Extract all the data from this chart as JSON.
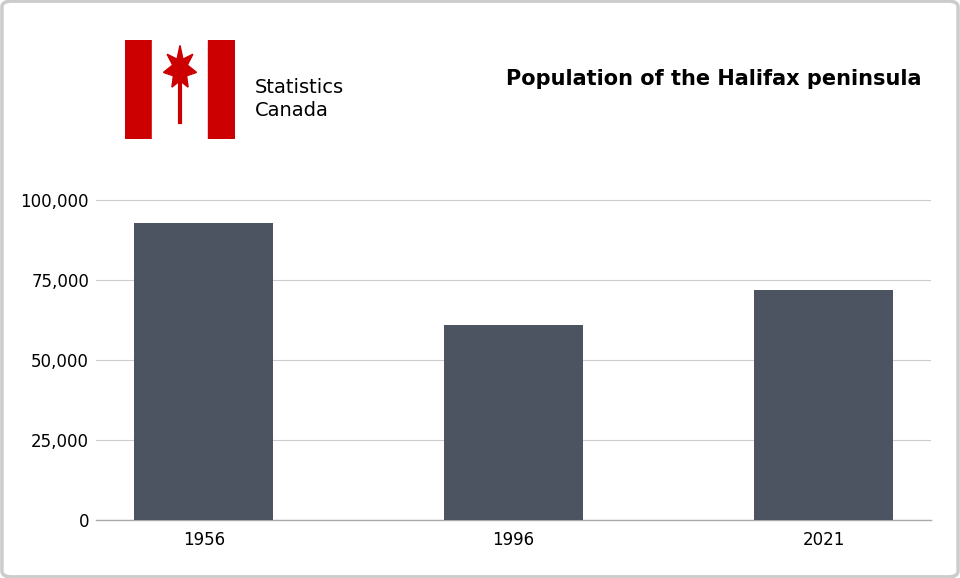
{
  "categories": [
    "1956",
    "1996",
    "2021"
  ],
  "values": [
    93000,
    61000,
    72000
  ],
  "bar_color": "#4d5461",
  "background_color": "#ffffff",
  "plot_bg_color": "#ffffff",
  "title": "Population of the Halifax peninsula",
  "title_fontsize": 15,
  "ylim": [
    0,
    112000
  ],
  "yticks": [
    0,
    25000,
    50000,
    75000,
    100000
  ],
  "ytick_labels": [
    "0",
    "25,000",
    "50,000",
    "75,000",
    "100,000"
  ],
  "grid_color": "#cccccc",
  "stats_canada_text_line1": "Statistics",
  "stats_canada_text_line2": "Canada",
  "stats_text_fontsize": 14,
  "tick_fontsize": 12,
  "bar_width": 0.45,
  "border_color": "#cccccc",
  "flag_red": "#cc0000",
  "flag_white": "#ffffff"
}
